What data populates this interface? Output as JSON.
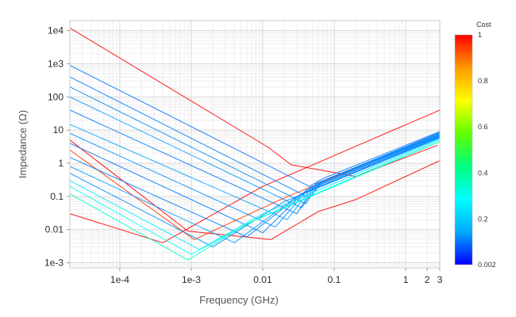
{
  "chart_data": {
    "type": "line",
    "title": "",
    "xlabel": "Frequency (GHz)",
    "ylabel": "Impedance (Ω)",
    "x_scale": "log",
    "y_scale": "log",
    "xlim": [
      2e-05,
      3.0
    ],
    "ylim": [
      0.0007,
      20000
    ],
    "grid": true,
    "x_ticks": [
      {
        "value": 0.0001,
        "label": "1e-4"
      },
      {
        "value": 0.001,
        "label": "1e-3"
      },
      {
        "value": 0.01,
        "label": "0.01"
      },
      {
        "value": 0.1,
        "label": "0.1"
      },
      {
        "value": 1,
        "label": "1"
      },
      {
        "value": 2,
        "label": "2"
      },
      {
        "value": 3,
        "label": "3"
      }
    ],
    "y_ticks": [
      {
        "value": 10000,
        "label": "1e4"
      },
      {
        "value": 1000,
        "label": "1e3"
      },
      {
        "value": 100,
        "label": "100"
      },
      {
        "value": 10,
        "label": "10"
      },
      {
        "value": 1,
        "label": "1"
      },
      {
        "value": 0.1,
        "label": "0.1"
      },
      {
        "value": 0.01,
        "label": "0.01"
      },
      {
        "value": 0.001,
        "label": "1e-3"
      }
    ],
    "colorbar": {
      "title": "Cost",
      "min": 0.002,
      "max": 1,
      "tick_labels": [
        {
          "value": 1,
          "label": "1"
        },
        {
          "value": 0.8,
          "label": "0.8"
        },
        {
          "value": 0.6,
          "label": "0.6"
        },
        {
          "value": 0.4,
          "label": "0.4"
        },
        {
          "value": 0.2,
          "label": "0.2"
        },
        {
          "value": 0.002,
          "label": "0.002"
        }
      ],
      "colors": [
        "#0000ff",
        "#00aaff",
        "#00ffff",
        "#00ff80",
        "#60ff00",
        "#ffff00",
        "#ff9900",
        "#ff0000"
      ]
    },
    "series": [
      {
        "cost": 1.0,
        "points": [
          [
            2e-05,
            12000
          ],
          [
            0.012,
            3
          ],
          [
            0.025,
            0.9
          ],
          [
            0.2,
            0.4
          ],
          [
            2.8,
            3.5
          ]
        ]
      },
      {
        "cost": 1.0,
        "points": [
          [
            2e-05,
            0.03
          ],
          [
            0.0004,
            0.004
          ],
          [
            0.01,
            0.2
          ],
          [
            3.0,
            40
          ]
        ]
      },
      {
        "cost": 1.0,
        "points": [
          [
            2e-05,
            5
          ],
          [
            0.0009,
            0.009
          ],
          [
            0.013,
            0.005
          ],
          [
            0.06,
            0.035
          ],
          [
            0.2,
            0.08
          ],
          [
            3.0,
            1.2
          ]
        ]
      },
      {
        "cost": 0.95,
        "points": [
          [
            2e-05,
            2.5
          ],
          [
            0.0011,
            0.005
          ],
          [
            0.02,
            0.09
          ],
          [
            3.0,
            8
          ]
        ]
      },
      {
        "cost": 0.1,
        "points": [
          [
            2e-05,
            900
          ],
          [
            0.045,
            0.2
          ],
          [
            0.07,
            0.35
          ],
          [
            3.0,
            9
          ]
        ]
      },
      {
        "cost": 0.11,
        "points": [
          [
            2e-05,
            400
          ],
          [
            0.045,
            0.09
          ],
          [
            0.07,
            0.3
          ],
          [
            3.0,
            8.5
          ]
        ]
      },
      {
        "cost": 0.12,
        "points": [
          [
            2e-05,
            200
          ],
          [
            0.04,
            0.06
          ],
          [
            0.065,
            0.28
          ],
          [
            3.0,
            8
          ]
        ]
      },
      {
        "cost": 0.13,
        "points": [
          [
            2e-05,
            100
          ],
          [
            0.035,
            0.045
          ],
          [
            0.06,
            0.26
          ],
          [
            3.0,
            7.5
          ]
        ]
      },
      {
        "cost": 0.1,
        "points": [
          [
            2e-05,
            40
          ],
          [
            0.03,
            0.03
          ],
          [
            0.055,
            0.24
          ],
          [
            3.0,
            7.2
          ]
        ]
      },
      {
        "cost": 0.14,
        "points": [
          [
            2e-05,
            15
          ],
          [
            0.022,
            0.02
          ],
          [
            0.05,
            0.2
          ],
          [
            3.0,
            7
          ]
        ]
      },
      {
        "cost": 0.12,
        "points": [
          [
            2e-05,
            8
          ],
          [
            0.015,
            0.012
          ],
          [
            0.045,
            0.18
          ],
          [
            3.0,
            6.8
          ]
        ]
      },
      {
        "cost": 0.1,
        "points": [
          [
            2e-05,
            4
          ],
          [
            0.01,
            0.008
          ],
          [
            0.04,
            0.15
          ],
          [
            3.0,
            6.5
          ]
        ]
      },
      {
        "cost": 0.11,
        "points": [
          [
            2e-05,
            1.5
          ],
          [
            0.006,
            0.006
          ],
          [
            0.035,
            0.12
          ],
          [
            3.0,
            6.2
          ]
        ]
      },
      {
        "cost": 0.13,
        "points": [
          [
            2e-05,
            0.8
          ],
          [
            0.004,
            0.004
          ],
          [
            0.03,
            0.1
          ],
          [
            3.0,
            6
          ]
        ]
      },
      {
        "cost": 0.12,
        "points": [
          [
            2e-05,
            0.5
          ],
          [
            0.002,
            0.003
          ],
          [
            0.02,
            0.07
          ],
          [
            3.0,
            5.8
          ]
        ]
      },
      {
        "cost": 0.25,
        "points": [
          [
            2e-05,
            0.3
          ],
          [
            0.0013,
            0.0025
          ],
          [
            0.01,
            0.03
          ],
          [
            3.0,
            5.5
          ]
        ]
      },
      {
        "cost": 0.3,
        "points": [
          [
            2e-05,
            0.2
          ],
          [
            0.001,
            0.0018
          ],
          [
            0.008,
            0.02
          ],
          [
            3.0,
            5
          ]
        ]
      },
      {
        "cost": 0.35,
        "points": [
          [
            2e-05,
            0.12
          ],
          [
            0.0009,
            0.0012
          ],
          [
            0.006,
            0.015
          ],
          [
            3.0,
            4.5
          ]
        ]
      }
    ]
  }
}
